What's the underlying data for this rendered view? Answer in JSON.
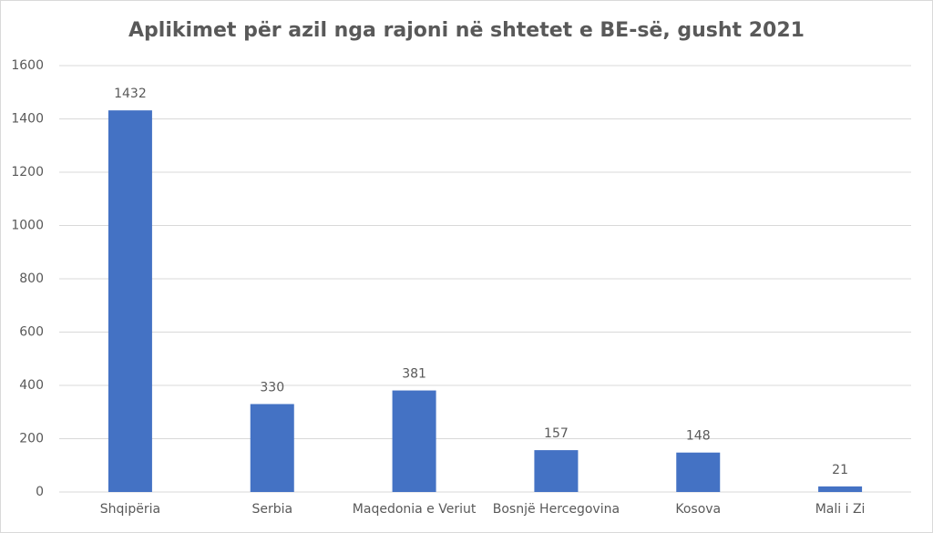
{
  "chart_data": {
    "type": "bar",
    "title": "Aplikimet për azil nga rajoni në shtetet e BE-së, gusht 2021",
    "categories": [
      "Shqipëria",
      "Serbia",
      "Maqedonia e Veriut",
      "Bosnjë Hercegovina",
      "Kosova",
      "Mali i Zi"
    ],
    "values": [
      1432,
      330,
      381,
      157,
      148,
      21
    ],
    "color": "#4472c4",
    "ylim": [
      0,
      1600
    ],
    "yticks": [
      0,
      200,
      400,
      600,
      800,
      1000,
      1200,
      1400,
      1600
    ],
    "grid": true,
    "data_labels": true
  }
}
